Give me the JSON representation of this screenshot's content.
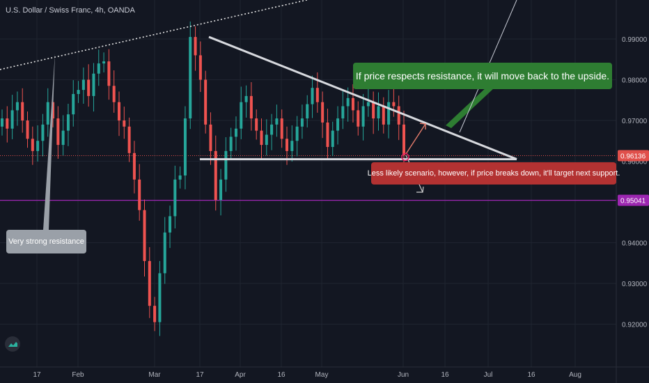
{
  "title": "U.S. Dollar / Swiss Franc, 4h, OANDA",
  "annotations": {
    "green": "If price respects resistance, it will move back to the upside.",
    "red": "Less likely scenario, however, if price breaks down, it'll target next support.",
    "grey": "Very strong resistance"
  },
  "price_labels": {
    "current": "0.96136",
    "support": "0.95041"
  },
  "colors": {
    "background": "#131722",
    "grid": "#1f2430",
    "up": "#26a69a",
    "down": "#ef5350",
    "green_callout": "#2e7d32",
    "red_callout": "#b33232",
    "grey_callout": "#9aa0a8",
    "support_line": "#9c27b0",
    "current_line": "#e0504b",
    "trend_line": "#d7d9de"
  },
  "icons": [
    "tradingview-logo-icon"
  ],
  "chart_data": {
    "type": "candlestick",
    "x_axis_ticks": [
      "17",
      "Feb",
      "Mar",
      "17",
      "Apr",
      "16",
      "May",
      "Jun",
      "16",
      "Jul",
      "16",
      "Aug"
    ],
    "y_axis_ticks": [
      "0.99000",
      "0.98000",
      "0.97000",
      "0.96000",
      "0.94000",
      "0.93000",
      "0.92000"
    ],
    "ylim": [
      0.9155,
      0.9935
    ],
    "series": [
      {
        "values": [
          0.9705,
          0.968,
          0.9725,
          0.9745,
          0.97,
          0.9655,
          0.9625,
          0.965,
          0.969,
          0.9745,
          0.9705,
          0.964,
          0.9675,
          0.9715,
          0.9765,
          0.9775,
          0.98,
          0.976,
          0.9815,
          0.984,
          0.9845,
          0.9785,
          0.9745,
          0.97,
          0.9685,
          0.962,
          0.9555,
          0.948,
          0.9355,
          0.9245,
          0.9205,
          0.9325,
          0.9425,
          0.9465,
          0.9555,
          0.9565,
          0.9705,
          0.9905,
          0.986,
          0.98,
          0.969,
          0.9625,
          0.9505,
          0.9555,
          0.9625,
          0.966,
          0.968,
          0.9745,
          0.976,
          0.9705,
          0.9675,
          0.964,
          0.9665,
          0.969,
          0.9705,
          0.9655,
          0.9625,
          0.965,
          0.9685,
          0.9705,
          0.974,
          0.978,
          0.9745,
          0.9695,
          0.9635,
          0.9675,
          0.9705,
          0.9735,
          0.9755,
          0.9725,
          0.9685,
          0.9735,
          0.9745,
          0.9705,
          0.9735,
          0.969,
          0.9745,
          0.9735,
          0.969,
          0.9615
        ]
      }
    ],
    "price_lines": [
      {
        "label": "0.96136",
        "value": 0.96136
      },
      {
        "label": "0.95041",
        "value": 0.95041
      }
    ],
    "trendlines": [
      {
        "style": "dotted",
        "from": [
          "-",
          0.9825
        ],
        "to": [
          "-",
          1.0075
        ]
      },
      {
        "style": "solid",
        "name": "descending resistance",
        "from": [
          "17 Mar",
          0.9905
        ],
        "to": [
          "~10 Jul",
          0.9605
        ]
      },
      {
        "style": "solid",
        "name": "horizontal support",
        "from": [
          "~16 Mar",
          0.9605
        ],
        "to": [
          "~10 Jul",
          0.9605
        ]
      }
    ],
    "grid": true
  }
}
